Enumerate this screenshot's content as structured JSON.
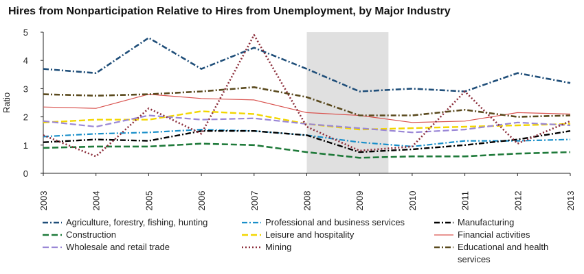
{
  "chart_data": {
    "type": "line",
    "title": "Hires from Nonparticipation Relative to Hires from Unemployment, by Major Industry",
    "ylabel": "Ratio",
    "xlabel": "",
    "x": [
      "2003",
      "2004",
      "2005",
      "2006",
      "2007",
      "2008",
      "2009",
      "2010",
      "2011",
      "2012",
      "2013"
    ],
    "ylim": [
      0,
      5
    ],
    "yticks": [
      0,
      1,
      2,
      3,
      4,
      5
    ],
    "grid": false,
    "legend_placement": "bottom",
    "shaded_region": {
      "from": "2008",
      "to": "2009"
    },
    "series": [
      {
        "name": "Agriculture, forestry, fishing, hunting",
        "color": "#1f4e79",
        "style": "dashdot",
        "width": 2.6,
        "values": [
          3.7,
          3.55,
          4.8,
          3.7,
          4.45,
          3.7,
          2.9,
          3.0,
          2.9,
          3.55,
          3.2
        ]
      },
      {
        "name": "Professional and business services",
        "color": "#1a8fc9",
        "style": "dashdot",
        "width": 2.2,
        "values": [
          1.3,
          1.4,
          1.45,
          1.55,
          1.5,
          1.35,
          1.1,
          0.95,
          1.15,
          1.15,
          1.2
        ]
      },
      {
        "name": "Manufacturing",
        "color": "#000000",
        "style": "dashdot",
        "width": 2.4,
        "values": [
          1.1,
          1.2,
          1.15,
          1.5,
          1.5,
          1.35,
          0.75,
          0.85,
          1.0,
          1.2,
          1.5
        ]
      },
      {
        "name": "Construction",
        "color": "#1f7a3a",
        "style": "dashed",
        "width": 2.6,
        "values": [
          0.9,
          0.95,
          0.95,
          1.05,
          1.0,
          0.75,
          0.55,
          0.6,
          0.6,
          0.7,
          0.75
        ]
      },
      {
        "name": "Leisure and hospitality",
        "color": "#f2d600",
        "style": "dashed",
        "width": 2.4,
        "values": [
          1.8,
          1.9,
          1.9,
          2.2,
          2.1,
          1.75,
          1.55,
          1.6,
          1.65,
          1.7,
          1.75
        ]
      },
      {
        "name": "Financial activities",
        "color": "#d9534f",
        "style": "solid",
        "width": 1.2,
        "values": [
          2.35,
          2.3,
          2.8,
          2.65,
          2.6,
          2.15,
          2.05,
          1.8,
          1.85,
          2.15,
          2.1
        ]
      },
      {
        "name": "Wholesale and retail trade",
        "color": "#9a87d6",
        "style": "dashed",
        "width": 2.2,
        "values": [
          1.85,
          1.65,
          2.05,
          1.9,
          1.95,
          1.75,
          1.6,
          1.45,
          1.55,
          1.8,
          1.7
        ]
      },
      {
        "name": "Mining",
        "color": "#8b2d3a",
        "style": "dotted",
        "width": 2.6,
        "values": [
          1.35,
          0.6,
          2.3,
          1.4,
          4.9,
          1.65,
          0.8,
          0.95,
          2.9,
          1.05,
          1.85
        ]
      },
      {
        "name": "Educational and health services",
        "color": "#5a4a1e",
        "style": "dashdot",
        "width": 2.6,
        "values": [
          2.8,
          2.75,
          2.8,
          2.9,
          3.05,
          2.7,
          2.05,
          2.05,
          2.25,
          2.0,
          2.05
        ]
      }
    ],
    "legend_rows": [
      [
        "Agriculture, forestry, fishing, hunting",
        "Professional and business services",
        "Manufacturing"
      ],
      [
        "Construction",
        "Leisure and hospitality",
        "Financial activities"
      ],
      [
        "Wholesale and retail trade",
        "Mining",
        "Educational and health services"
      ]
    ]
  }
}
